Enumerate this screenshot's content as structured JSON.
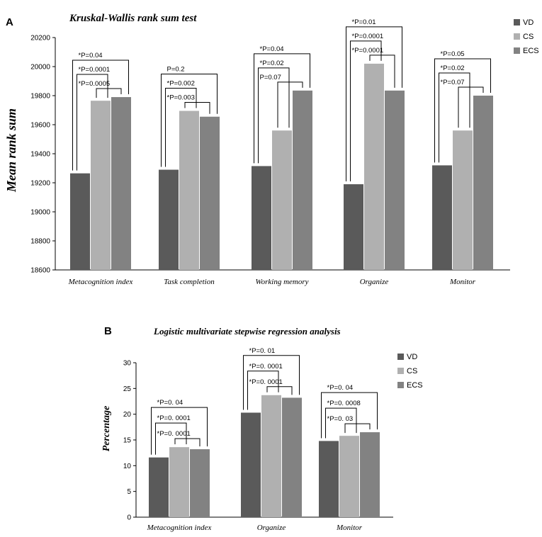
{
  "chart_data": [
    {
      "panel": "A",
      "type": "bar",
      "title": "Kruskal-Wallis rank sum test",
      "ylabel": "Mean rank sum",
      "xlabel": "",
      "ylim": [
        18600,
        20200
      ],
      "yticks": [
        18600,
        18800,
        19000,
        19200,
        19400,
        19600,
        19800,
        20000,
        20200
      ],
      "categories": [
        "Metacognition index",
        "Task completion",
        "Working memory",
        "Organize",
        "Monitor"
      ],
      "series": [
        {
          "name": "VD",
          "color": "#5a5a5a",
          "values": [
            19265,
            19290,
            19315,
            19190,
            19320
          ]
        },
        {
          "name": "CS",
          "color": "#b0b0b0",
          "values": [
            19765,
            19695,
            19560,
            20020,
            19560
          ]
        },
        {
          "name": "ECS",
          "color": "#828282",
          "values": [
            19790,
            19655,
            19835,
            19835,
            19800
          ]
        }
      ],
      "annotations": [
        [
          "*P=0.04",
          "*P=0.0001",
          "*P=0.0005"
        ],
        [
          "P=0.2",
          "*P=0.002",
          "*P=0.003"
        ],
        [
          "*P=0.04",
          "*P=0.02",
          "P=0.07"
        ],
        [
          "*P=0.01",
          "*P=0.0001",
          "*P=0.0001"
        ],
        [
          "*P=0.05",
          "*P=0.02",
          "*P=0.07"
        ]
      ],
      "legend": "top-right"
    },
    {
      "panel": "B",
      "type": "bar",
      "title": "Logistic multivariate stepwise regression analysis",
      "ylabel": "Percentage",
      "xlabel": "",
      "ylim": [
        0,
        30
      ],
      "yticks": [
        0,
        5,
        10,
        15,
        20,
        25,
        30
      ],
      "categories": [
        "Metacognition index",
        "Organize",
        "Monitor"
      ],
      "series": [
        {
          "name": "VD",
          "color": "#5a5a5a",
          "values": [
            11.6,
            20.3,
            14.8
          ]
        },
        {
          "name": "CS",
          "color": "#b0b0b0",
          "values": [
            13.6,
            23.7,
            15.8
          ]
        },
        {
          "name": "ECS",
          "color": "#828282",
          "values": [
            13.2,
            23.2,
            16.5
          ]
        }
      ],
      "annotations": [
        [
          "*P=0. 04",
          "*P=0. 0001",
          "*P=0. 0001"
        ],
        [
          "*P=0. 01",
          "*P=0. 0001",
          "*P=0. 0001"
        ],
        [
          "*P=0. 04",
          "*P=0. 0008",
          "*P=0. 03"
        ]
      ],
      "legend": "top-right"
    }
  ]
}
